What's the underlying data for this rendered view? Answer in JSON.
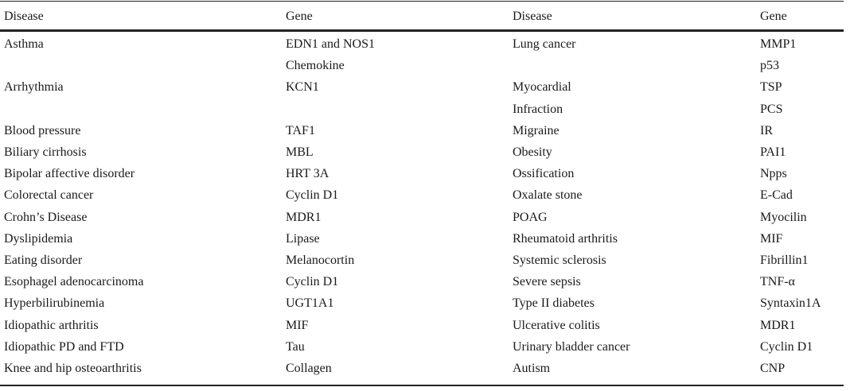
{
  "headers": [
    "Disease",
    "Gene",
    "Disease",
    "Gene"
  ],
  "rows": [
    [
      "Asthma",
      "EDN1 and NOS1",
      "Lung cancer",
      "MMP1"
    ],
    [
      "",
      "Chemokine",
      "",
      "p53"
    ],
    [
      "Arrhythmia",
      "KCN1",
      "Myocardial",
      "TSP"
    ],
    [
      "",
      "",
      "Infraction",
      "PCS"
    ],
    [
      "Blood pressure",
      "TAF1",
      "Migraine",
      "IR"
    ],
    [
      "Biliary cirrhosis",
      "MBL",
      "Obesity",
      "PAI1"
    ],
    [
      "Bipolar affective disorder",
      "HRT 3A",
      "Ossification",
      "Npps"
    ],
    [
      "Colorectal cancer",
      "Cyclin D1",
      "Oxalate stone",
      "E-Cad"
    ],
    [
      "Crohn’s Disease",
      "MDR1",
      "POAG",
      "Myocilin"
    ],
    [
      "Dyslipidemia",
      "Lipase",
      "Rheumatoid arthritis",
      "MIF"
    ],
    [
      "Eating disorder",
      "Melanocortin",
      "Systemic sclerosis",
      "Fibrillin1"
    ],
    [
      "Esophagel adenocarcinoma",
      "Cyclin D1",
      "Severe sepsis",
      "TNF-α"
    ],
    [
      "Hyperbilirubinemia",
      "UGT1A1",
      "Type II diabetes",
      "Syntaxin1A"
    ],
    [
      "Idiopathic arthritis",
      "MIF",
      "Ulcerative colitis",
      "MDR1"
    ],
    [
      "Idiopathic PD and FTD",
      "Tau",
      "Urinary bladder cancer",
      "Cyclin D1"
    ],
    [
      "Knee and hip osteoarthritis",
      "Collagen",
      "Autism",
      "CNP"
    ]
  ]
}
